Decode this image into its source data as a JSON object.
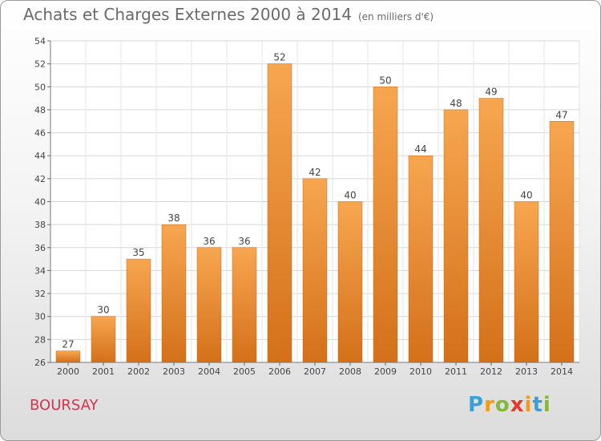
{
  "header": {
    "title": "Achats et Charges Externes 2000 à 2014",
    "subtitle": "(en milliers d'€)"
  },
  "location": "BOURSAY",
  "brand": {
    "name": "Proxiti",
    "letters": [
      "P",
      "r",
      "o",
      "x",
      "i",
      "t",
      "i"
    ],
    "letter_colors": [
      "#3aa0d8",
      "#f29a1a",
      "#86b83a",
      "#e23a2e",
      "#f29a1a",
      "#3aa0d8",
      "#86b83a"
    ]
  },
  "chart_data": {
    "type": "bar",
    "categories": [
      "2000",
      "2001",
      "2002",
      "2003",
      "2004",
      "2005",
      "2006",
      "2007",
      "2008",
      "2009",
      "2010",
      "2011",
      "2012",
      "2013",
      "2014"
    ],
    "values": [
      27,
      30,
      35,
      38,
      36,
      36,
      52,
      42,
      40,
      50,
      44,
      48,
      49,
      40,
      47
    ],
    "ylim": [
      26,
      54
    ],
    "yticks": [
      26,
      28,
      30,
      32,
      34,
      36,
      38,
      40,
      42,
      44,
      46,
      48,
      50,
      52,
      54
    ],
    "grid": true,
    "bar_color": "#f09a44"
  }
}
